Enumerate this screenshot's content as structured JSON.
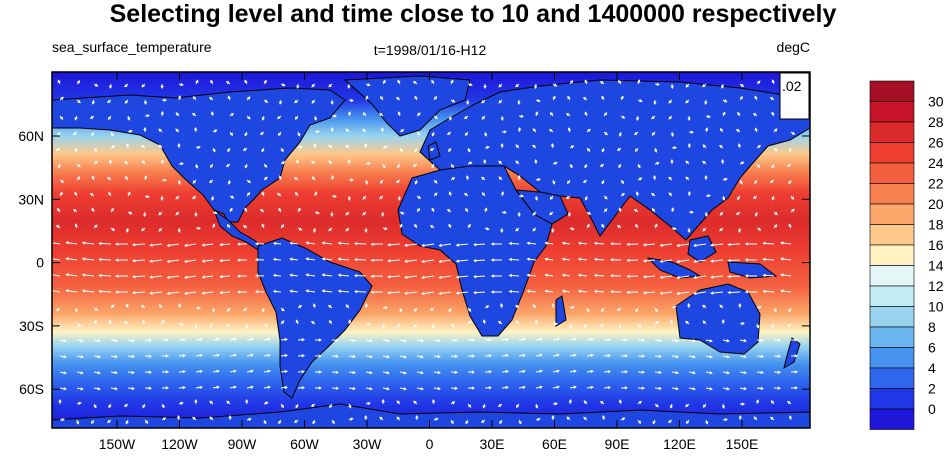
{
  "title": "Selecting level and time close to 10 and 1400000 respectively",
  "subtitle_left": "sea_surface_temperature",
  "subtitle_center": "t=1998/01/16-H12",
  "subtitle_right": "degC",
  "vector_ref_label": ".02",
  "colors": {
    "land": "#1e46e0",
    "arrow": "#ffffff",
    "coast": "#000000"
  },
  "chart_data": {
    "type": "heatmap",
    "variable": "sea_surface_temperature",
    "units": "degC",
    "lon_ticks": [
      "150W",
      "120W",
      "90W",
      "60W",
      "30W",
      "0",
      "30E",
      "60E",
      "90E",
      "120E",
      "150E"
    ],
    "lat_ticks": [
      "60N",
      "30N",
      "0",
      "30S",
      "60S"
    ],
    "colorbar_labels": [
      "30",
      "28",
      "26",
      "24",
      "22",
      "20",
      "18",
      "16",
      "14",
      "12",
      "10",
      "8",
      "6",
      "4",
      "2",
      "0"
    ],
    "colorbar_colors": [
      "#a50f26",
      "#c8142a",
      "#dc2b2b",
      "#ee3e32",
      "#f4603f",
      "#f88050",
      "#fba66a",
      "#fdc98a",
      "#fff3c4",
      "#e4f6f7",
      "#c3ecf5",
      "#98d4f0",
      "#6bb6ee",
      "#4592ef",
      "#2e66ee",
      "#2138e6",
      "#1e16d8"
    ]
  }
}
